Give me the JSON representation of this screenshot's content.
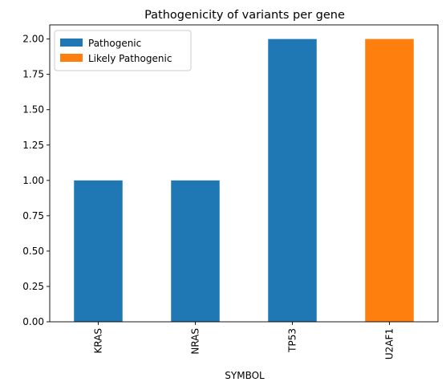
{
  "chart_data": {
    "type": "bar",
    "stacked": true,
    "title": "Pathogenicity of variants per gene",
    "xlabel": "SYMBOL",
    "ylabel": "",
    "categories": [
      "KRAS",
      "NRAS",
      "TP53",
      "U2AF1"
    ],
    "series": [
      {
        "name": "Pathogenic",
        "color": "#1f77b4",
        "values": [
          1,
          1,
          2,
          0
        ]
      },
      {
        "name": "Likely Pathogenic",
        "color": "#ff7f0e",
        "values": [
          0,
          0,
          0,
          2
        ]
      }
    ],
    "ylim": [
      0,
      2.1
    ],
    "yticks": [
      "0.00",
      "0.25",
      "0.50",
      "0.75",
      "1.00",
      "1.25",
      "1.50",
      "1.75",
      "2.00"
    ],
    "ytick_values": [
      0,
      0.25,
      0.5,
      0.75,
      1.0,
      1.25,
      1.5,
      1.75,
      2.0
    ],
    "grid": false,
    "legend_position": "top-left"
  }
}
